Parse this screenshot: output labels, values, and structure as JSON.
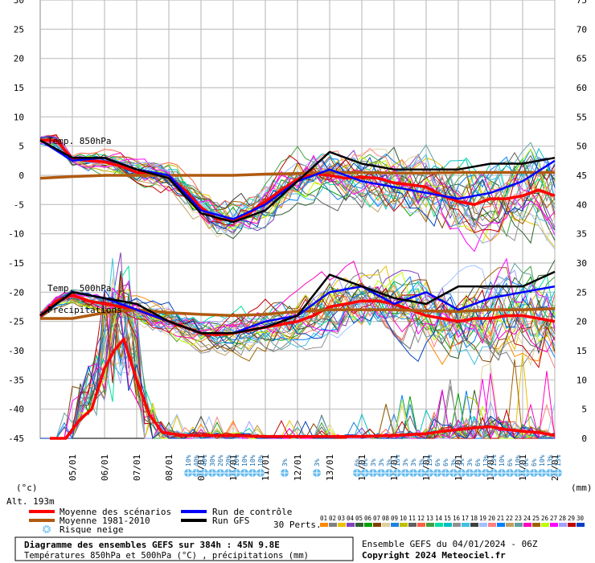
{
  "chart_data": {
    "type": "line",
    "left_axis": {
      "unit": "(°c)",
      "range": [
        -45,
        30
      ],
      "ticks": [
        "30",
        "25",
        "20",
        "15",
        "10",
        "5",
        "0",
        "-5",
        "-10",
        "-15",
        "-20",
        "-25",
        "-30",
        "-35",
        "-40",
        "-45"
      ]
    },
    "right_axis": {
      "unit": "(mm)",
      "range": [
        0,
        75
      ],
      "ticks": [
        "75",
        "70",
        "65",
        "60",
        "55",
        "50",
        "45",
        "40",
        "35",
        "30",
        "25",
        "20",
        "15",
        "10",
        "5",
        "0"
      ]
    },
    "x_labels": [
      "05/01",
      "06/01",
      "07/01",
      "08/01",
      "09/01",
      "10/01",
      "11/01",
      "12/01",
      "13/01",
      "14/01",
      "15/01",
      "16/01",
      "17/01",
      "18/01",
      "19/01",
      "20/01"
    ],
    "altitude_label": "Alt. 193m",
    "panel_labels": [
      "Temp. 850hPa",
      "Temp. 500hPa",
      "Précipitations"
    ],
    "grid": true,
    "snow_risk_labels": [
      {
        "day": 8.6,
        "pct": "10%"
      },
      {
        "day": 8.85,
        "pct": "40%"
      },
      {
        "day": 9.1,
        "pct": "40%"
      },
      {
        "day": 9.35,
        "pct": "30%"
      },
      {
        "day": 9.6,
        "pct": "26%"
      },
      {
        "day": 9.85,
        "pct": "20%"
      },
      {
        "day": 10.1,
        "pct": "10%"
      },
      {
        "day": 10.35,
        "pct": "10%"
      },
      {
        "day": 10.6,
        "pct": "10%"
      },
      {
        "day": 10.85,
        "pct": "10%"
      },
      {
        "day": 11.6,
        "pct": "3%"
      },
      {
        "day": 12.6,
        "pct": "3%"
      },
      {
        "day": 13.85,
        "pct": "6%"
      },
      {
        "day": 14.1,
        "pct": "6%"
      },
      {
        "day": 14.35,
        "pct": "3%"
      },
      {
        "day": 14.6,
        "pct": "3%"
      },
      {
        "day": 14.85,
        "pct": "3%"
      },
      {
        "day": 15.1,
        "pct": "16%"
      },
      {
        "day": 15.35,
        "pct": "3%"
      },
      {
        "day": 15.6,
        "pct": "3%"
      },
      {
        "day": 15.85,
        "pct": "3%"
      },
      {
        "day": 16.1,
        "pct": "13%"
      },
      {
        "day": 16.35,
        "pct": "6%"
      },
      {
        "day": 16.6,
        "pct": "6%"
      },
      {
        "day": 16.85,
        "pct": "3%"
      },
      {
        "day": 17.1,
        "pct": "3%"
      },
      {
        "day": 17.35,
        "pct": "3%"
      },
      {
        "day": 17.6,
        "pct": "6%"
      },
      {
        "day": 17.85,
        "pct": "13%"
      },
      {
        "day": 18.1,
        "pct": "13%"
      },
      {
        "day": 18.35,
        "pct": "10%"
      },
      {
        "day": 18.6,
        "pct": "6%"
      },
      {
        "day": 18.85,
        "pct": "10%"
      },
      {
        "day": 19.1,
        "pct": "6%"
      },
      {
        "day": 19.35,
        "pct": "6%"
      },
      {
        "day": 19.6,
        "pct": "10%"
      },
      {
        "day": 19.85,
        "pct": "13%"
      },
      {
        "day": 20.1,
        "pct": "13%"
      }
    ],
    "series": [
      {
        "name": "Moyenne des scénarios",
        "color": "#ff0000",
        "panel": "t850",
        "x": [
          4,
          4.5,
          5,
          5.5,
          6,
          6.5,
          7,
          7.5,
          8,
          8.5,
          9,
          9.5,
          10,
          10.5,
          11,
          11.5,
          12,
          12.5,
          13,
          13.5,
          14,
          14.5,
          15,
          15.5,
          16,
          16.5,
          17,
          17.5,
          18,
          18.5,
          19,
          19.5,
          20
        ],
        "values": [
          6,
          6,
          2.8,
          2.5,
          2.3,
          1.6,
          0.5,
          0.3,
          -0.3,
          -2.5,
          -5.5,
          -7.5,
          -7.6,
          -6.5,
          -4.5,
          -2.5,
          -0.7,
          0.3,
          0,
          -0.5,
          -0.3,
          -0.5,
          -1.3,
          -1.6,
          -2,
          -3.5,
          -4.5,
          -5,
          -4,
          -4,
          -3.5,
          -2.5,
          -3.5
        ]
      },
      {
        "name": "Moyenne 1981-2010",
        "color": "#b05a10",
        "panel": "t850",
        "x": [
          4,
          5,
          6,
          7,
          8,
          9,
          10,
          11,
          12,
          13,
          14,
          15,
          16,
          17,
          18,
          19,
          20
        ],
        "values": [
          -0.5,
          -0.2,
          0,
          0,
          0,
          0,
          0,
          0.2,
          0.3,
          0.5,
          0.5,
          0.4,
          0.4,
          0.5,
          0.5,
          0.5,
          0.5
        ]
      },
      {
        "name": "Moyenne des scénarios",
        "color": "#ff0000",
        "panel": "t500",
        "x": [
          4,
          4.5,
          5,
          5.5,
          6,
          6.5,
          7,
          7.5,
          8,
          8.5,
          9,
          9.5,
          10,
          10.5,
          11,
          11.5,
          12,
          12.5,
          13,
          13.5,
          14,
          14.5,
          15,
          15.5,
          16,
          16.5,
          17,
          17.5,
          18,
          18.5,
          19,
          19.5,
          20
        ],
        "values": [
          -24,
          -21.5,
          -20.5,
          -21.5,
          -22,
          -22.5,
          -23,
          -24,
          -25,
          -26,
          -27,
          -27.3,
          -27,
          -26.5,
          -26,
          -25.5,
          -25,
          -24,
          -22.5,
          -22,
          -21.5,
          -21.5,
          -22,
          -23,
          -24,
          -24.5,
          -25,
          -24.5,
          -24.5,
          -24,
          -24,
          -24.5,
          -25
        ]
      },
      {
        "name": "Moyenne 1981-2010",
        "color": "#b05a10",
        "panel": "t500",
        "x": [
          4,
          5,
          6,
          7,
          8,
          9,
          10,
          11,
          12,
          13,
          14,
          15,
          16,
          17,
          18,
          19,
          20
        ],
        "values": [
          -24.5,
          -24.5,
          -23.5,
          -23,
          -23.5,
          -23.8,
          -24,
          -23.8,
          -23.3,
          -23,
          -23,
          -23,
          -23.2,
          -23.3,
          -23,
          -23,
          -22.8
        ]
      },
      {
        "name": "Run de contrôle",
        "color": "#0000ff",
        "panel": "t850",
        "x": [
          4,
          5,
          6,
          7,
          8,
          9,
          10,
          11,
          12,
          13,
          14,
          15,
          16,
          17,
          18,
          19,
          20
        ],
        "values": [
          6,
          2.5,
          3,
          1,
          0,
          -6,
          -7.5,
          -5,
          -1,
          1,
          -1,
          -2,
          -3,
          -4,
          -3,
          -1,
          2.5
        ]
      },
      {
        "name": "Run GFS",
        "color": "#000000",
        "panel": "t850",
        "x": [
          4,
          5,
          6,
          7,
          8,
          9,
          10,
          11,
          12,
          13,
          14,
          15,
          16,
          17,
          18,
          19,
          20
        ],
        "values": [
          6,
          3,
          3,
          1,
          -0.5,
          -6.5,
          -8,
          -6,
          -1,
          4,
          2,
          1,
          1,
          1,
          2,
          2,
          3
        ]
      },
      {
        "name": "Run de contrôle",
        "color": "#0000ff",
        "panel": "t500",
        "x": [
          4,
          5,
          6,
          7,
          8,
          9,
          10,
          11,
          12,
          13,
          14,
          15,
          16,
          17,
          18,
          19,
          20
        ],
        "values": [
          -24,
          -20,
          -21,
          -23,
          -25,
          -27,
          -27,
          -25,
          -24,
          -20,
          -19,
          -22,
          -20,
          -23,
          -21,
          -20,
          -19
        ]
      },
      {
        "name": "Run GFS",
        "color": "#000000",
        "panel": "t500",
        "x": [
          4,
          5,
          6,
          7,
          8,
          9,
          10,
          11,
          12,
          13,
          14,
          15,
          16,
          17,
          18,
          19,
          20
        ],
        "values": [
          -24,
          -20,
          -21,
          -22,
          -25,
          -27,
          -27,
          -26,
          -24,
          -17,
          -19,
          -21,
          -22,
          -19,
          -19,
          -19,
          -16.5
        ]
      },
      {
        "name": "Moyenne des scénarios",
        "color": "#ff0000",
        "panel": "precip",
        "x": [
          4.3,
          4.8,
          5.2,
          5.6,
          6,
          6.3,
          6.6,
          7,
          7.4,
          7.8,
          8.5,
          9,
          9.5,
          10,
          11,
          12,
          13,
          14,
          15,
          16,
          16.5,
          17,
          17.5,
          18,
          18.5,
          19,
          19.5,
          20
        ],
        "values": [
          0,
          0,
          3,
          5,
          12,
          15,
          17,
          10,
          4,
          1,
          0.5,
          0.5,
          0.5,
          0.5,
          0.3,
          0.3,
          0.3,
          0.3,
          0.5,
          0.8,
          1.2,
          1.5,
          1.8,
          2,
          1.5,
          1.2,
          1,
          0.5
        ]
      }
    ],
    "ensemble": {
      "label": "30 Perts.",
      "count": 30,
      "t850_spread": [
        0.8,
        0.8,
        1.5,
        1.5,
        1.8,
        2,
        2.5,
        3,
        3,
        3,
        3.5,
        4,
        4.5,
        4.5,
        5,
        5.5,
        6
      ],
      "t500_spread": [
        0.8,
        0.8,
        1.2,
        1.5,
        2,
        2,
        2.5,
        3,
        3,
        3.5,
        4,
        4,
        4.5,
        5,
        5.5,
        6,
        6.5
      ],
      "precip_scale": [
        1,
        1,
        3,
        1,
        0.5,
        0.4,
        0.3,
        0.3,
        0.3,
        0.4,
        0.6,
        0.8,
        1,
        1.3,
        1.4,
        1.5,
        1.2
      ]
    }
  },
  "legend": {
    "items": [
      {
        "label": "Moyenne des scénarios",
        "color": "#ff0000"
      },
      {
        "label": "Moyenne 1981-2010",
        "color": "#b05a10"
      },
      {
        "label": "Risque neige",
        "color": "#66bbee"
      },
      {
        "label": "Run de contrôle",
        "color": "#0000ff"
      },
      {
        "label": "Run GFS",
        "color": "#000000"
      }
    ],
    "perturbations_label": "30 Perts.",
    "perturbation_numbers": [
      "01",
      "02",
      "03",
      "04",
      "05",
      "06",
      "07",
      "08",
      "09",
      "10",
      "11",
      "12",
      "13",
      "14",
      "15",
      "16",
      "17",
      "18",
      "19",
      "20",
      "21",
      "22",
      "23",
      "24",
      "25",
      "26",
      "27",
      "28",
      "29",
      "30"
    ],
    "perturbation_colors": [
      "#ff8800",
      "#808080",
      "#e8c000",
      "#8040c0",
      "#306030",
      "#00a000",
      "#804000",
      "#e0d0a0",
      "#2080e0",
      "#c0c000",
      "#606060",
      "#ff6040",
      "#40a040",
      "#00e0a0",
      "#00c0c0",
      "#909090",
      "#40c0e0",
      "#404040",
      "#a0c0ff",
      "#ff8080",
      "#0080ff",
      "#c0a060",
      "#60a0a0",
      "#ff00c0",
      "#a06000",
      "#c0ff00",
      "#ff00ff",
      "#a0a0ff",
      "#c00000",
      "#0040c0"
    ]
  },
  "footer": {
    "title": "Diagramme des ensembles GEFS sur 384h : 45N 9.8E",
    "subtitle": "Températures 850hPa et 500hPa (°C) , précipitations (mm)",
    "run_info": "Ensemble GEFS du 04/01/2024 - 06Z",
    "copyright": "Copyright 2024 Meteociel.fr"
  }
}
